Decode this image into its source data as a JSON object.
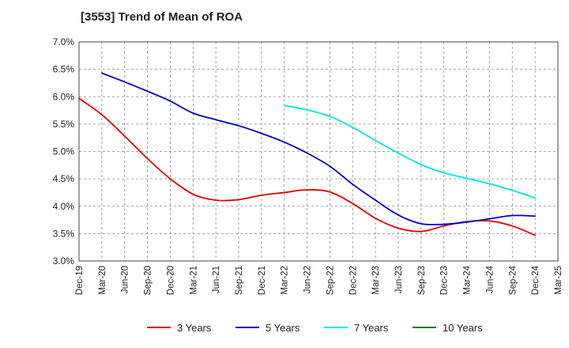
{
  "chart_data": {
    "type": "line",
    "title": "[3553]  Trend of Mean of ROA",
    "xlabel": "",
    "ylabel": "",
    "ylim": [
      3.0,
      7.0
    ],
    "yticks": [
      "3.0%",
      "3.5%",
      "4.0%",
      "4.5%",
      "5.0%",
      "5.5%",
      "6.0%",
      "6.5%",
      "7.0%"
    ],
    "categories": [
      "Dec-19",
      "Mar-20",
      "Jun-20",
      "Sep-20",
      "Dec-20",
      "Mar-21",
      "Jun-21",
      "Sep-21",
      "Dec-21",
      "Mar-22",
      "Jun-22",
      "Sep-22",
      "Dec-22",
      "Mar-23",
      "Jun-23",
      "Sep-23",
      "Dec-23",
      "Mar-24",
      "Jun-24",
      "Sep-24",
      "Dec-24",
      "Mar-25"
    ],
    "grid": true,
    "legend_position": "bottom",
    "series": [
      {
        "name": "3 Years",
        "color": "#e00000",
        "values": [
          5.97,
          5.67,
          5.28,
          4.87,
          4.5,
          4.22,
          4.11,
          4.12,
          4.2,
          4.25,
          4.3,
          4.26,
          4.05,
          3.78,
          3.6,
          3.54,
          3.64,
          3.72,
          3.73,
          3.64,
          3.47,
          null
        ]
      },
      {
        "name": "5 Years",
        "color": "#0000cc",
        "values": [
          null,
          6.43,
          6.27,
          6.1,
          5.92,
          5.7,
          5.58,
          5.47,
          5.33,
          5.17,
          4.97,
          4.73,
          4.4,
          4.11,
          3.84,
          3.68,
          3.67,
          3.71,
          3.77,
          3.83,
          3.82,
          null
        ]
      },
      {
        "name": "7 Years",
        "color": "#00e5e5",
        "values": [
          null,
          null,
          null,
          null,
          null,
          null,
          null,
          null,
          null,
          5.84,
          5.76,
          5.64,
          5.44,
          5.2,
          4.97,
          4.76,
          4.61,
          4.51,
          4.41,
          4.29,
          4.15,
          null
        ]
      },
      {
        "name": "10 Years",
        "color": "#008000",
        "values": [
          null,
          null,
          null,
          null,
          null,
          null,
          null,
          null,
          null,
          null,
          null,
          null,
          null,
          null,
          null,
          null,
          null,
          null,
          null,
          null,
          null,
          null
        ]
      }
    ]
  }
}
